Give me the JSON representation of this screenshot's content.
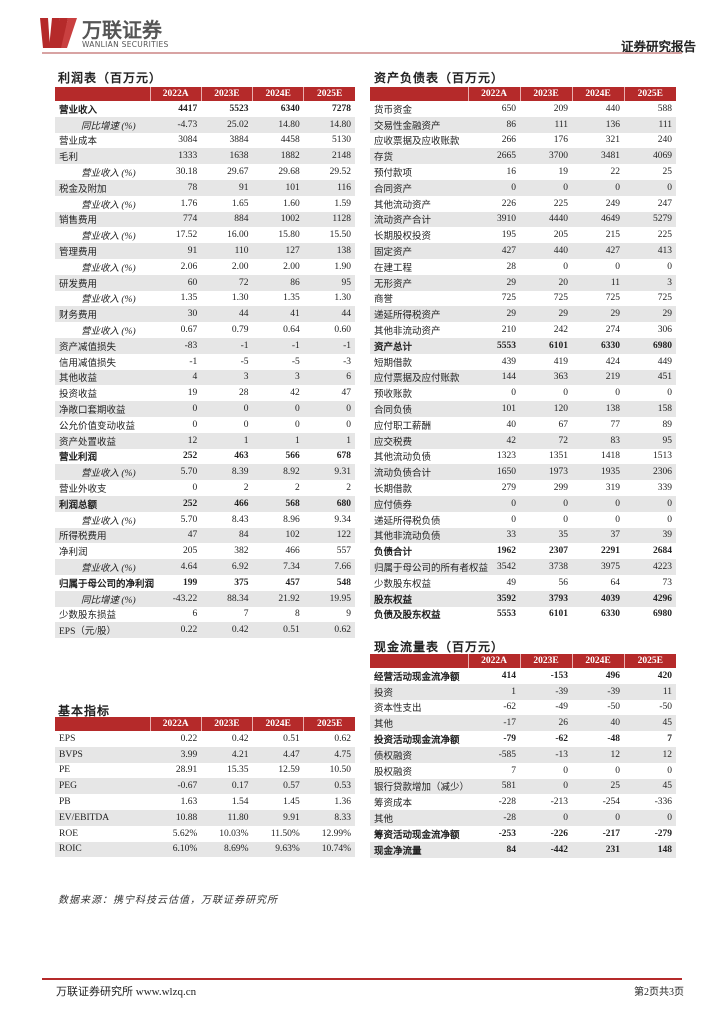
{
  "header": {
    "logo_cn": "万联证券",
    "logo_en": "WANLIAN SECURITIES",
    "report_type": "证券研究报告",
    "brand_color": "#b52a2a"
  },
  "years": [
    "2022A",
    "2023E",
    "2024E",
    "2025E"
  ],
  "income_statement": {
    "title": "利润表（百万元）",
    "rows": [
      {
        "label": "营业收入",
        "values": [
          "4417",
          "5523",
          "6340",
          "7278"
        ],
        "style": "b"
      },
      {
        "label": "同比增速 (%)",
        "values": [
          "-4.73",
          "25.02",
          "14.80",
          "14.80"
        ],
        "style": "i"
      },
      {
        "label": "营业成本",
        "values": [
          "3084",
          "3884",
          "4458",
          "5130"
        ]
      },
      {
        "label": "毛利",
        "values": [
          "1333",
          "1638",
          "1882",
          "2148"
        ]
      },
      {
        "label": "营业收入 (%)",
        "values": [
          "30.18",
          "29.67",
          "29.68",
          "29.52"
        ],
        "style": "i"
      },
      {
        "label": "税金及附加",
        "values": [
          "78",
          "91",
          "101",
          "116"
        ]
      },
      {
        "label": "营业收入 (%)",
        "values": [
          "1.76",
          "1.65",
          "1.60",
          "1.59"
        ],
        "style": "i"
      },
      {
        "label": "销售费用",
        "values": [
          "774",
          "884",
          "1002",
          "1128"
        ]
      },
      {
        "label": "营业收入 (%)",
        "values": [
          "17.52",
          "16.00",
          "15.80",
          "15.50"
        ],
        "style": "i"
      },
      {
        "label": "管理费用",
        "values": [
          "91",
          "110",
          "127",
          "138"
        ]
      },
      {
        "label": "营业收入 (%)",
        "values": [
          "2.06",
          "2.00",
          "2.00",
          "1.90"
        ],
        "style": "i"
      },
      {
        "label": "研发费用",
        "values": [
          "60",
          "72",
          "86",
          "95"
        ]
      },
      {
        "label": "营业收入 (%)",
        "values": [
          "1.35",
          "1.30",
          "1.35",
          "1.30"
        ],
        "style": "i"
      },
      {
        "label": "财务费用",
        "values": [
          "30",
          "44",
          "41",
          "44"
        ]
      },
      {
        "label": "营业收入 (%)",
        "values": [
          "0.67",
          "0.79",
          "0.64",
          "0.60"
        ],
        "style": "i"
      },
      {
        "label": "资产减值损失",
        "values": [
          "-83",
          "-1",
          "-1",
          "-1"
        ]
      },
      {
        "label": "信用减值损失",
        "values": [
          "-1",
          "-5",
          "-5",
          "-3"
        ]
      },
      {
        "label": "其他收益",
        "values": [
          "4",
          "3",
          "3",
          "6"
        ]
      },
      {
        "label": "投资收益",
        "values": [
          "19",
          "28",
          "42",
          "47"
        ]
      },
      {
        "label": "净敞口套期收益",
        "values": [
          "0",
          "0",
          "0",
          "0"
        ]
      },
      {
        "label": "公允价值变动收益",
        "values": [
          "0",
          "0",
          "0",
          "0"
        ]
      },
      {
        "label": "资产处置收益",
        "values": [
          "12",
          "1",
          "1",
          "1"
        ]
      },
      {
        "label": "营业利润",
        "values": [
          "252",
          "463",
          "566",
          "678"
        ],
        "style": "b"
      },
      {
        "label": "营业收入 (%)",
        "values": [
          "5.70",
          "8.39",
          "8.92",
          "9.31"
        ],
        "style": "i"
      },
      {
        "label": "营业外收支",
        "values": [
          "0",
          "2",
          "2",
          "2"
        ]
      },
      {
        "label": "利润总额",
        "values": [
          "252",
          "466",
          "568",
          "680"
        ],
        "style": "b"
      },
      {
        "label": "营业收入 (%)",
        "values": [
          "5.70",
          "8.43",
          "8.96",
          "9.34"
        ],
        "style": "i"
      },
      {
        "label": "所得税费用",
        "values": [
          "47",
          "84",
          "102",
          "122"
        ]
      },
      {
        "label": "净利润",
        "values": [
          "205",
          "382",
          "466",
          "557"
        ]
      },
      {
        "label": "营业收入 (%)",
        "values": [
          "4.64",
          "6.92",
          "7.34",
          "7.66"
        ],
        "style": "i"
      },
      {
        "label": "归属于母公司的净利润",
        "values": [
          "199",
          "375",
          "457",
          "548"
        ],
        "style": "b"
      },
      {
        "label": "同比增速 (%)",
        "values": [
          "-43.22",
          "88.34",
          "21.92",
          "19.95"
        ],
        "style": "i"
      },
      {
        "label": "少数股东损益",
        "values": [
          "6",
          "7",
          "8",
          "9"
        ]
      },
      {
        "label": "EPS（元/股）",
        "values": [
          "0.22",
          "0.42",
          "0.51",
          "0.62"
        ]
      }
    ]
  },
  "balance_sheet": {
    "title": "资产负债表（百万元）",
    "rows": [
      {
        "label": "货币资金",
        "values": [
          "650",
          "209",
          "440",
          "588"
        ]
      },
      {
        "label": "交易性金融资产",
        "values": [
          "86",
          "111",
          "136",
          "111"
        ]
      },
      {
        "label": "应收票据及应收账款",
        "values": [
          "266",
          "176",
          "321",
          "240"
        ]
      },
      {
        "label": "存货",
        "values": [
          "2665",
          "3700",
          "3481",
          "4069"
        ]
      },
      {
        "label": "预付款项",
        "values": [
          "16",
          "19",
          "22",
          "25"
        ]
      },
      {
        "label": "合同资产",
        "values": [
          "0",
          "0",
          "0",
          "0"
        ]
      },
      {
        "label": "其他流动资产",
        "values": [
          "226",
          "225",
          "249",
          "247"
        ]
      },
      {
        "label": "流动资产合计",
        "values": [
          "3910",
          "4440",
          "4649",
          "5279"
        ]
      },
      {
        "label": "长期股权投资",
        "values": [
          "195",
          "205",
          "215",
          "225"
        ]
      },
      {
        "label": "固定资产",
        "values": [
          "427",
          "440",
          "427",
          "413"
        ]
      },
      {
        "label": "在建工程",
        "values": [
          "28",
          "0",
          "0",
          "0"
        ]
      },
      {
        "label": "无形资产",
        "values": [
          "29",
          "20",
          "11",
          "3"
        ]
      },
      {
        "label": "商誉",
        "values": [
          "725",
          "725",
          "725",
          "725"
        ]
      },
      {
        "label": "递延所得税资产",
        "values": [
          "29",
          "29",
          "29",
          "29"
        ]
      },
      {
        "label": "其他非流动资产",
        "values": [
          "210",
          "242",
          "274",
          "306"
        ]
      },
      {
        "label": "资产总计",
        "values": [
          "5553",
          "6101",
          "6330",
          "6980"
        ],
        "style": "b"
      },
      {
        "label": "短期借款",
        "values": [
          "439",
          "419",
          "424",
          "449"
        ]
      },
      {
        "label": "应付票据及应付账款",
        "values": [
          "144",
          "363",
          "219",
          "451"
        ]
      },
      {
        "label": "预收账款",
        "values": [
          "0",
          "0",
          "0",
          "0"
        ]
      },
      {
        "label": "合同负债",
        "values": [
          "101",
          "120",
          "138",
          "158"
        ]
      },
      {
        "label": "应付职工薪酬",
        "values": [
          "40",
          "67",
          "77",
          "89"
        ]
      },
      {
        "label": "应交税费",
        "values": [
          "42",
          "72",
          "83",
          "95"
        ]
      },
      {
        "label": "其他流动负债",
        "values": [
          "1323",
          "1351",
          "1418",
          "1513"
        ]
      },
      {
        "label": "流动负债合计",
        "values": [
          "1650",
          "1973",
          "1935",
          "2306"
        ]
      },
      {
        "label": "长期借款",
        "values": [
          "279",
          "299",
          "319",
          "339"
        ]
      },
      {
        "label": "应付债券",
        "values": [
          "0",
          "0",
          "0",
          "0"
        ]
      },
      {
        "label": "递延所得税负债",
        "values": [
          "0",
          "0",
          "0",
          "0"
        ]
      },
      {
        "label": "其他非流动负债",
        "values": [
          "33",
          "35",
          "37",
          "39"
        ]
      },
      {
        "label": "负债合计",
        "values": [
          "1962",
          "2307",
          "2291",
          "2684"
        ],
        "style": "b"
      },
      {
        "label": "归属于母公司的所有者权益",
        "values": [
          "3542",
          "3738",
          "3975",
          "4223"
        ]
      },
      {
        "label": "少数股东权益",
        "values": [
          "49",
          "56",
          "64",
          "73"
        ]
      },
      {
        "label": "股东权益",
        "values": [
          "3592",
          "3793",
          "4039",
          "4296"
        ],
        "style": "b"
      },
      {
        "label": "负债及股东权益",
        "values": [
          "5553",
          "6101",
          "6330",
          "6980"
        ],
        "style": "b"
      }
    ]
  },
  "cash_flow": {
    "title": "现金流量表（百万元）",
    "rows": [
      {
        "label": "经营活动现金流净额",
        "values": [
          "414",
          "-153",
          "496",
          "420"
        ],
        "style": "b"
      },
      {
        "label": "投资",
        "values": [
          "1",
          "-39",
          "-39",
          "11"
        ]
      },
      {
        "label": "资本性支出",
        "values": [
          "-62",
          "-49",
          "-50",
          "-50"
        ]
      },
      {
        "label": "其他",
        "values": [
          "-17",
          "26",
          "40",
          "45"
        ]
      },
      {
        "label": "投资活动现金流净额",
        "values": [
          "-79",
          "-62",
          "-48",
          "7"
        ],
        "style": "b"
      },
      {
        "label": "债权融资",
        "values": [
          "-585",
          "-13",
          "12",
          "12"
        ]
      },
      {
        "label": "股权融资",
        "values": [
          "7",
          "0",
          "0",
          "0"
        ]
      },
      {
        "label": "银行贷款增加（减少）",
        "values": [
          "581",
          "0",
          "25",
          "45"
        ]
      },
      {
        "label": "筹资成本",
        "values": [
          "-228",
          "-213",
          "-254",
          "-336"
        ]
      },
      {
        "label": "其他",
        "values": [
          "-28",
          "0",
          "0",
          "0"
        ]
      },
      {
        "label": "筹资活动现金流净额",
        "values": [
          "-253",
          "-226",
          "-217",
          "-279"
        ],
        "style": "b"
      },
      {
        "label": "现金净流量",
        "values": [
          "84",
          "-442",
          "231",
          "148"
        ],
        "style": "b"
      }
    ]
  },
  "basic_indicators": {
    "title": "基本指标",
    "rows": [
      {
        "label": "EPS",
        "values": [
          "0.22",
          "0.42",
          "0.51",
          "0.62"
        ]
      },
      {
        "label": "BVPS",
        "values": [
          "3.99",
          "4.21",
          "4.47",
          "4.75"
        ]
      },
      {
        "label": "PE",
        "values": [
          "28.91",
          "15.35",
          "12.59",
          "10.50"
        ]
      },
      {
        "label": "PEG",
        "values": [
          "-0.67",
          "0.17",
          "0.57",
          "0.53"
        ]
      },
      {
        "label": "PB",
        "values": [
          "1.63",
          "1.54",
          "1.45",
          "1.36"
        ]
      },
      {
        "label": "EV/EBITDA",
        "values": [
          "10.88",
          "11.80",
          "9.91",
          "8.33"
        ]
      },
      {
        "label": "ROE",
        "values": [
          "5.62%",
          "10.03%",
          "11.50%",
          "12.99%"
        ]
      },
      {
        "label": "ROIC",
        "values": [
          "6.10%",
          "8.69%",
          "9.63%",
          "10.74%"
        ]
      }
    ]
  },
  "source_note": "数据来源：携宁科技云估值，万联证券研究所",
  "footer": {
    "left": "万联证券研究所 www.wlzq.cn",
    "page": "第2页共3页"
  }
}
